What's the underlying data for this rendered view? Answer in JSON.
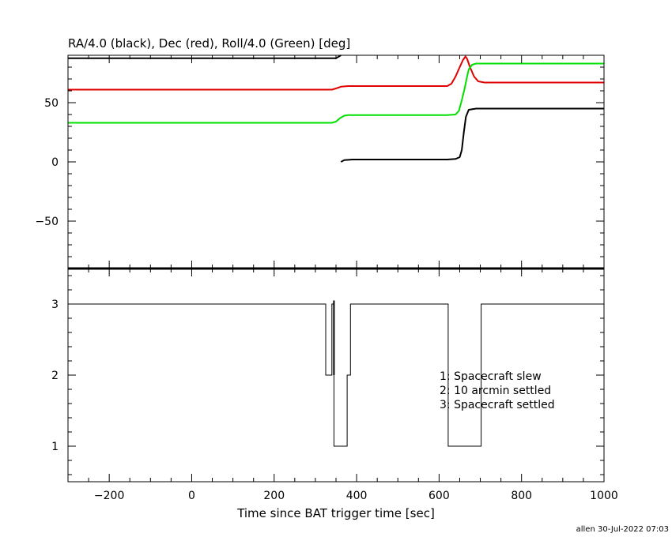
{
  "chart_data": [
    {
      "type": "line",
      "title": "RA/4.0 (black), Dec (red), Roll/4.0 (Green) [deg]",
      "xlim": [
        -300,
        1000
      ],
      "ylim": [
        -90,
        90
      ],
      "yticks": [
        -50,
        0,
        50
      ],
      "yticklabels": [
        "−50",
        "0",
        "50"
      ],
      "grid": false,
      "series": [
        {
          "name": "RA/4.0",
          "color": "#000000",
          "segments": [
            [
              [
                -300,
                87.5
              ],
              [
                350,
                87.5
              ],
              [
                362,
                90
              ]
            ],
            [
              [
                362,
                0
              ],
              [
                370,
                1.5
              ],
              [
                390,
                2
              ],
              [
                620,
                2
              ],
              [
                640,
                2.5
              ],
              [
                650,
                4
              ],
              [
                655,
                10
              ],
              [
                660,
                25
              ],
              [
                665,
                38
              ],
              [
                672,
                44
              ],
              [
                690,
                45
              ],
              [
                1000,
                45
              ]
            ]
          ]
        },
        {
          "name": "Dec",
          "color": "#e00000",
          "segments": [
            [
              [
                -300,
                61
              ],
              [
                340,
                61
              ],
              [
                350,
                62
              ],
              [
                362,
                63.5
              ],
              [
                380,
                64
              ],
              [
                620,
                64
              ],
              [
                630,
                66
              ],
              [
                640,
                72
              ],
              [
                650,
                80
              ],
              [
                658,
                86
              ],
              [
                664,
                89
              ],
              [
                668,
                87
              ],
              [
                675,
                80
              ],
              [
                685,
                72
              ],
              [
                695,
                68
              ],
              [
                710,
                67
              ],
              [
                1000,
                67
              ]
            ]
          ]
        },
        {
          "name": "Roll/4.0",
          "color": "#00e000",
          "segments": [
            [
              [
                -300,
                33
              ],
              [
                340,
                33
              ],
              [
                350,
                34
              ],
              [
                360,
                37
              ],
              [
                370,
                39
              ],
              [
                380,
                39.5
              ],
              [
                620,
                39.5
              ],
              [
                640,
                40
              ],
              [
                648,
                43
              ],
              [
                655,
                52
              ],
              [
                662,
                62
              ],
              [
                668,
                72
              ],
              [
                672,
                78
              ],
              [
                680,
                82
              ],
              [
                690,
                83
              ],
              [
                1000,
                83
              ]
            ]
          ]
        }
      ]
    },
    {
      "type": "line",
      "xlabel": "Time since BAT trigger time [sec]",
      "xlim": [
        -300,
        1000
      ],
      "ylim": [
        0.5,
        3.5
      ],
      "xticks": [
        -200,
        0,
        200,
        400,
        600,
        800,
        1000
      ],
      "xticklabels": [
        "−200",
        "0",
        "200",
        "400",
        "600",
        "800",
        "1000"
      ],
      "yticks": [
        1,
        2,
        3
      ],
      "yticklabels": [
        "1",
        "2",
        "3"
      ],
      "grid": false,
      "series": [
        {
          "color": "#000000",
          "steps": [
            [
              -300,
              3
            ],
            [
              325,
              2
            ],
            [
              340,
              3
            ],
            [
              345,
              1
            ],
            [
              377,
              2
            ],
            [
              385,
              3
            ],
            [
              622,
              1
            ],
            [
              702,
              3
            ],
            [
              1000,
              3
            ]
          ]
        }
      ],
      "annotations": [
        "1: Spacecraft slew",
        "2: 10 arcmin settled",
        "3: Spacecraft settled"
      ]
    }
  ],
  "footer": "allen 30-Jul-2022 07:03"
}
